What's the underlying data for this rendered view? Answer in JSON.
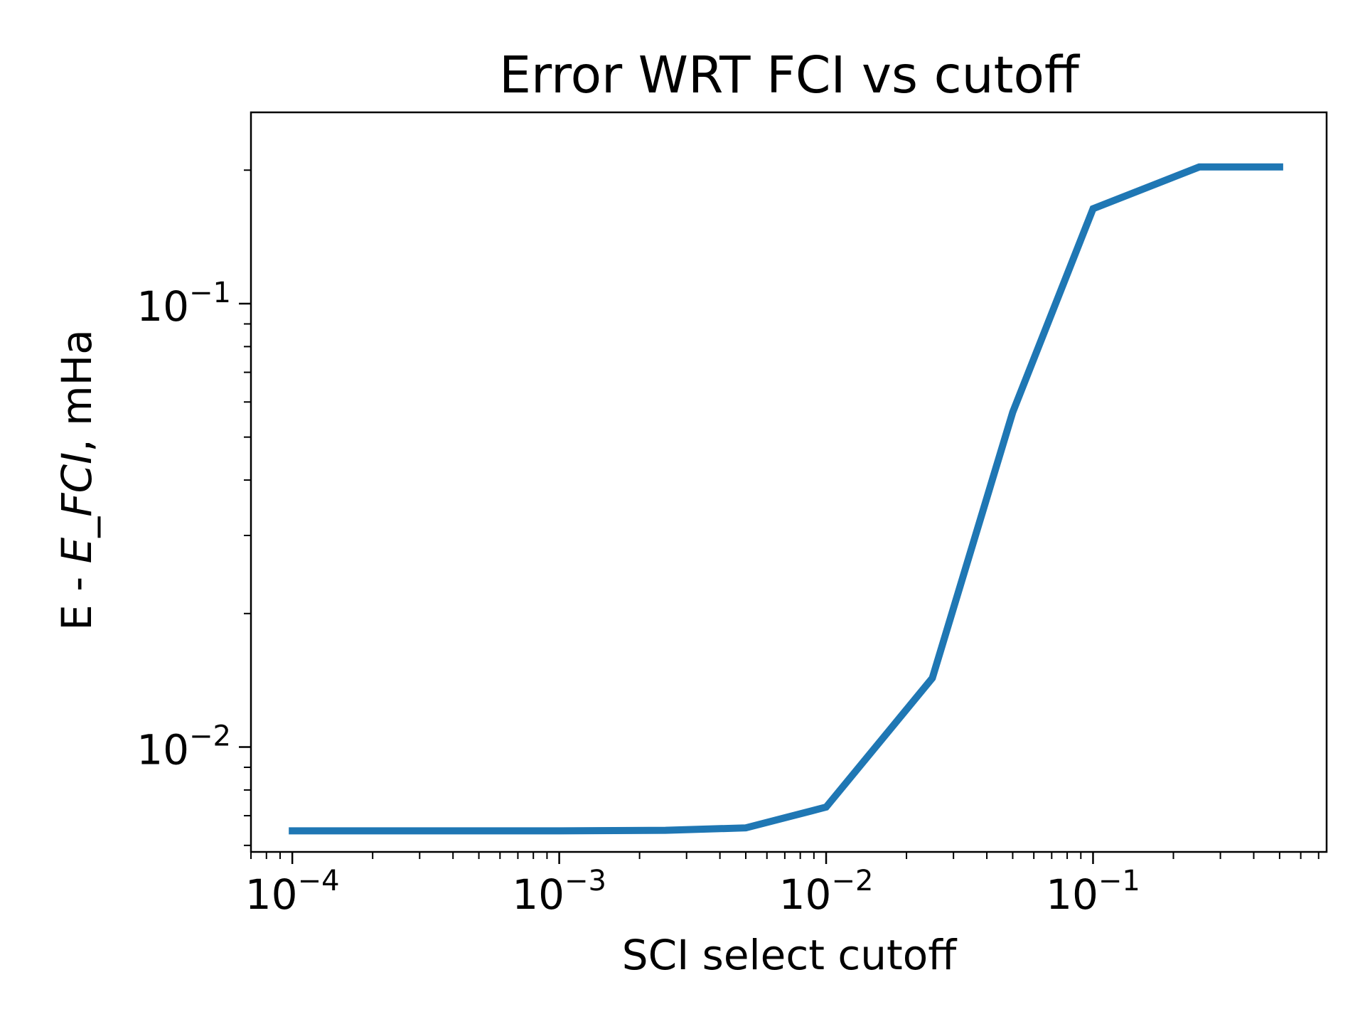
{
  "chart_data": {
    "type": "line",
    "title": "Error WRT FCI vs cutoff",
    "xlabel": "SCI select cutoff",
    "ylabel_parts": {
      "plain1": "E - ",
      "italic": "E_FCI",
      "plain2": ", mHa"
    },
    "x_scale": "log",
    "y_scale": "log",
    "xlim": [
      7e-05,
      0.75
    ],
    "ylim": [
      0.0058,
      0.27
    ],
    "x_major_ticks": [
      {
        "value": 0.0001,
        "base": "10",
        "exp": "−4"
      },
      {
        "value": 0.001,
        "base": "10",
        "exp": "−3"
      },
      {
        "value": 0.01,
        "base": "10",
        "exp": "−2"
      },
      {
        "value": 0.1,
        "base": "10",
        "exp": "−1"
      }
    ],
    "y_major_ticks": [
      {
        "value": 0.01,
        "base": "10",
        "exp": "−2"
      },
      {
        "value": 0.1,
        "base": "10",
        "exp": "−1"
      }
    ],
    "grid": false,
    "series": [
      {
        "color": "#1f77b4",
        "x": [
          0.0001,
          0.001,
          0.0025,
          0.005,
          0.01,
          0.025,
          0.05,
          0.1,
          0.25,
          0.5
        ],
        "y": [
          0.00647,
          0.00647,
          0.00649,
          0.00657,
          0.00732,
          0.0143,
          0.0569,
          0.1637,
          0.2033,
          0.2033
        ]
      }
    ]
  }
}
